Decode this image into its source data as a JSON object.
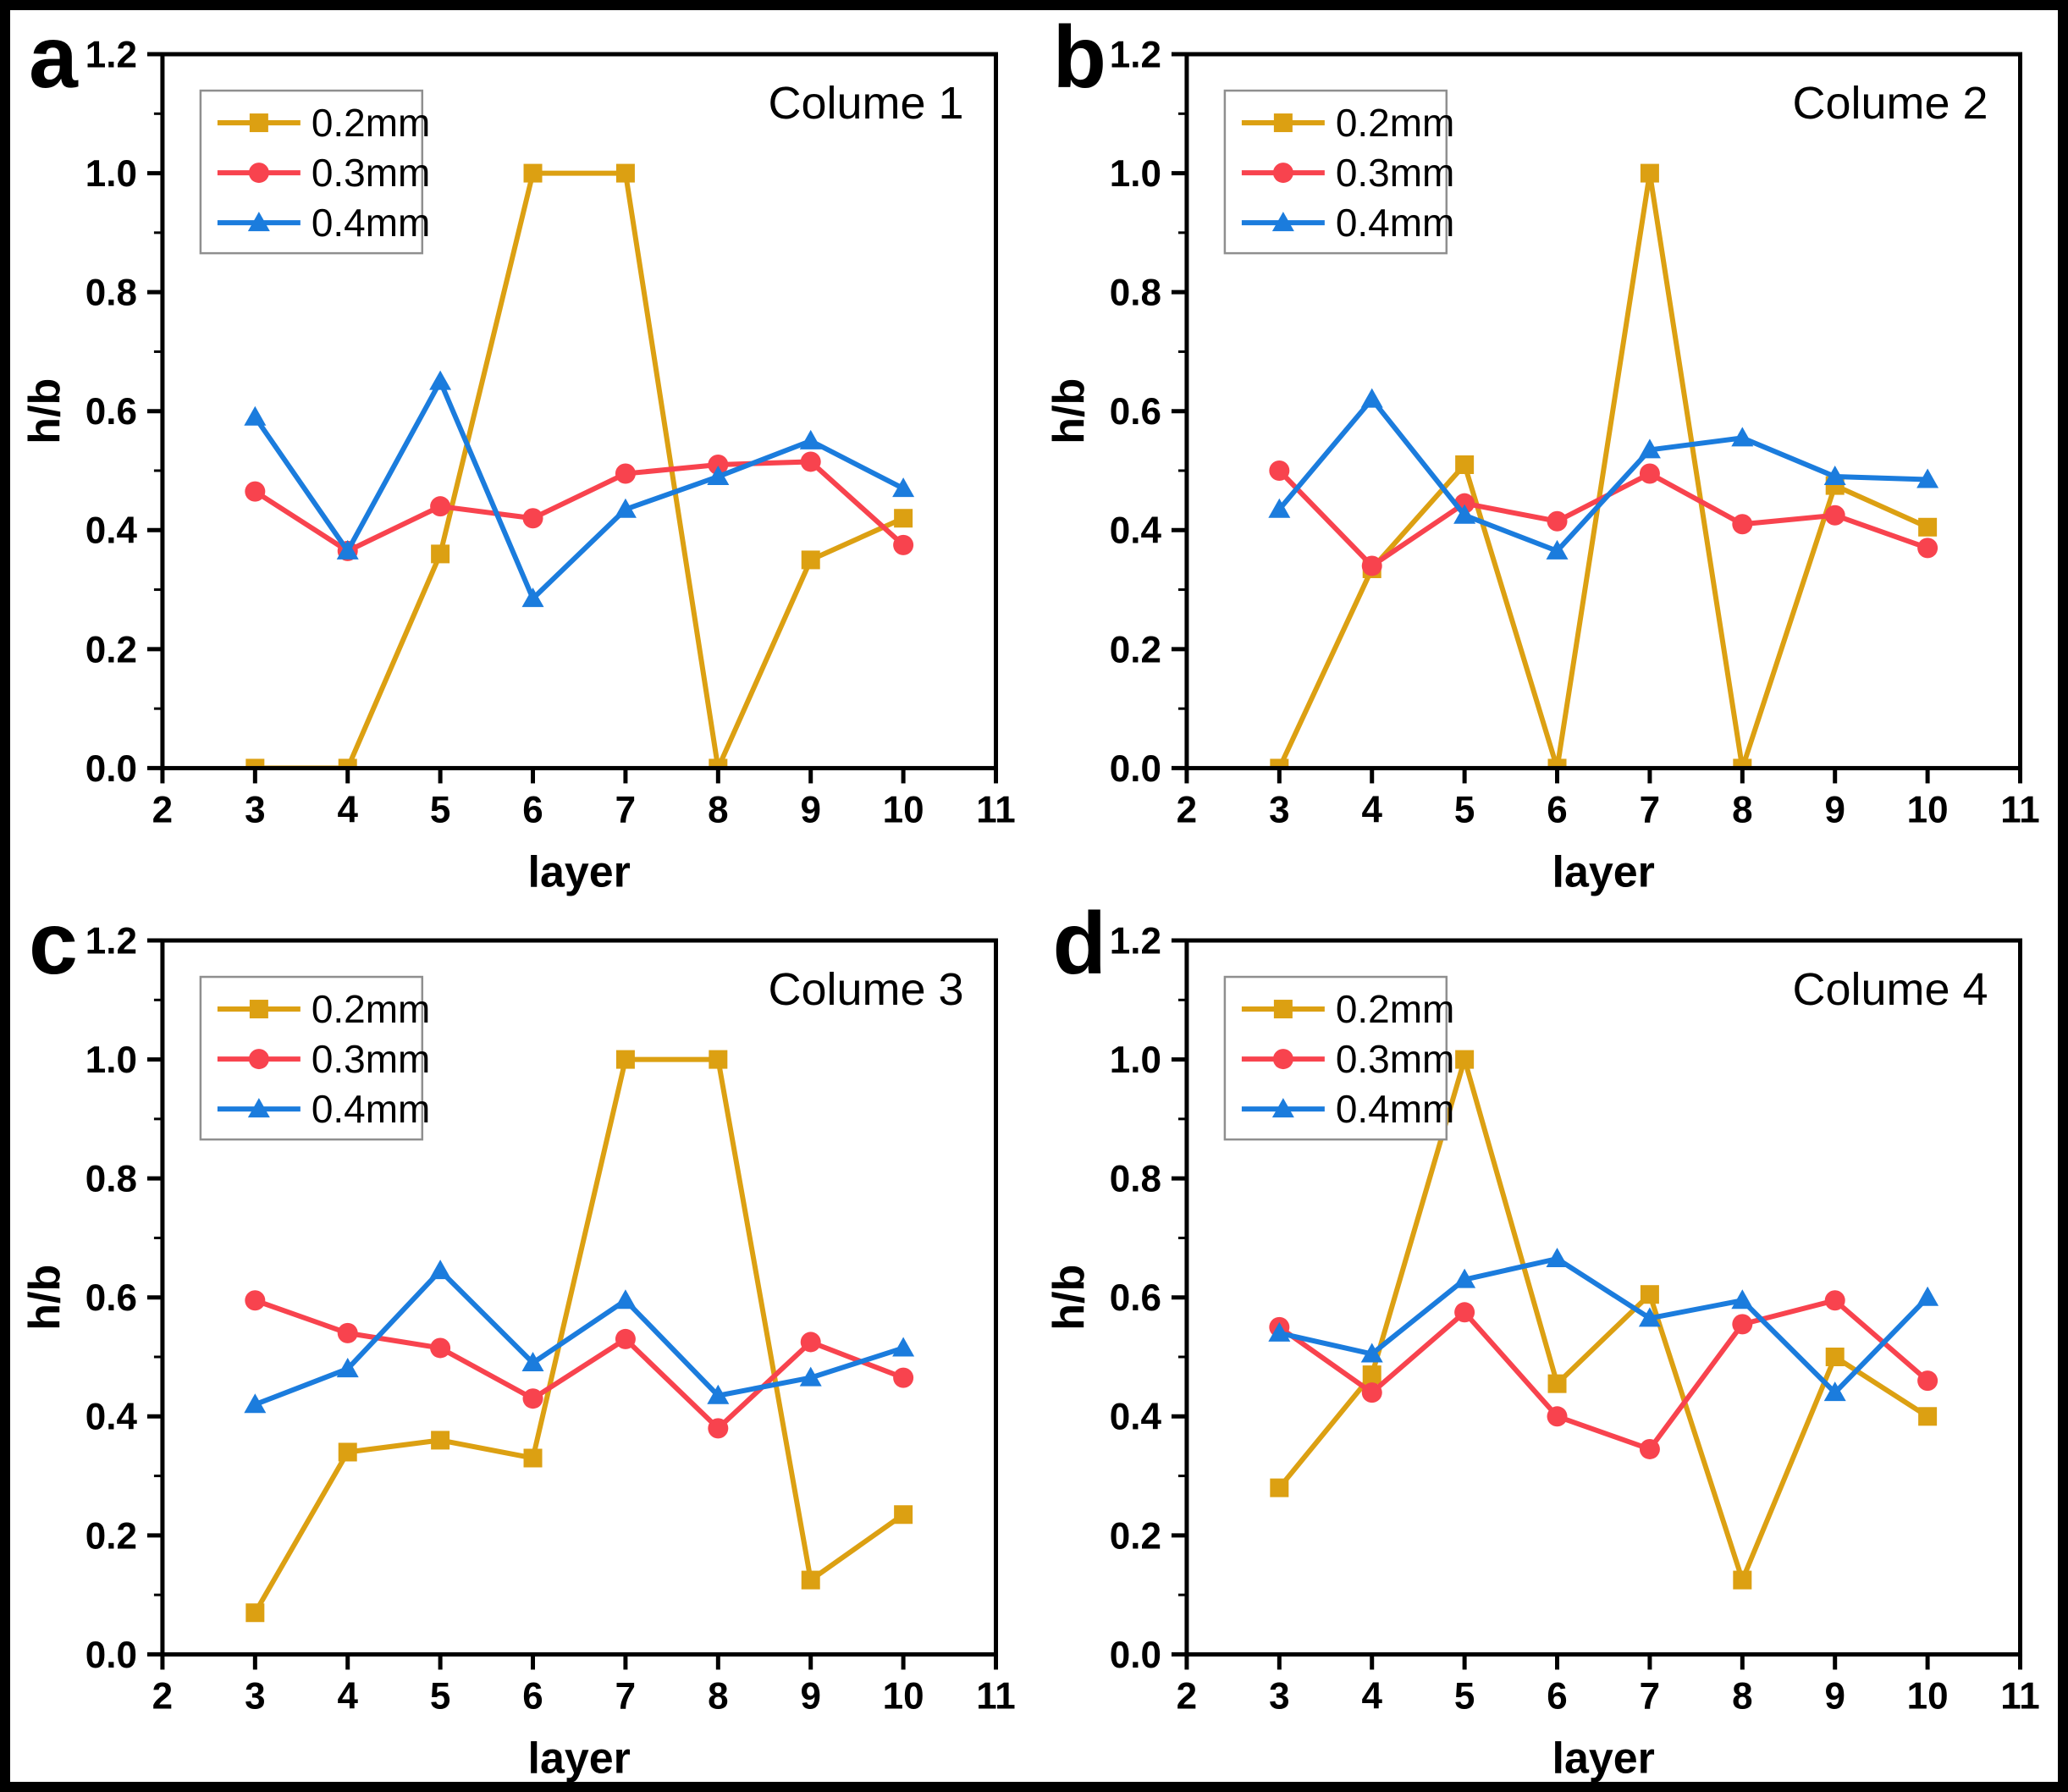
{
  "figure": {
    "background": "#ffffff",
    "border_color": "#000000"
  },
  "style": {
    "axis_color": "#000000",
    "legend_border_color": "#8f8f8f",
    "legend_background": "#ffffff",
    "series_colors": {
      "0.2mm": "#DCA012",
      "0.3mm": "#F8434E",
      "0.4mm": "#1B7CDD"
    },
    "marker_shapes": {
      "0.2mm": "square",
      "0.3mm": "circle",
      "0.4mm": "triangle"
    }
  },
  "chart_data": [
    {
      "type": "line",
      "panel_letter": "a",
      "title": "Colume 1",
      "xlabel": "layer",
      "ylabel": "h/b",
      "xlim": [
        2,
        11
      ],
      "ylim": [
        0.0,
        1.2
      ],
      "xticks": [
        2,
        3,
        4,
        5,
        6,
        7,
        8,
        9,
        10,
        11
      ],
      "yticks": [
        "0.0",
        "0.2",
        "0.4",
        "0.6",
        "0.8",
        "1.0",
        "1.2"
      ],
      "y_minor_step": 0.1,
      "grid": false,
      "legend_position": "top-left",
      "x": [
        3,
        4,
        5,
        6,
        7,
        8,
        9,
        10
      ],
      "series": [
        {
          "name": "0.2mm",
          "marker": "square",
          "color": "#DCA012",
          "values": [
            0.0,
            0.0,
            0.36,
            1.0,
            1.0,
            0.0,
            0.35,
            0.42
          ]
        },
        {
          "name": "0.3mm",
          "marker": "circle",
          "color": "#F8434E",
          "values": [
            0.465,
            0.365,
            0.44,
            0.42,
            0.495,
            0.51,
            0.515,
            0.375
          ]
        },
        {
          "name": "0.4mm",
          "marker": "triangle",
          "color": "#1B7CDD",
          "values": [
            0.59,
            0.365,
            0.65,
            0.285,
            0.435,
            0.49,
            0.55,
            0.47
          ]
        }
      ]
    },
    {
      "type": "line",
      "panel_letter": "b",
      "title": "Colume 2",
      "xlabel": "layer",
      "ylabel": "h/b",
      "xlim": [
        2,
        11
      ],
      "ylim": [
        0.0,
        1.2
      ],
      "xticks": [
        2,
        3,
        4,
        5,
        6,
        7,
        8,
        9,
        10,
        11
      ],
      "yticks": [
        "0.0",
        "0.2",
        "0.4",
        "0.6",
        "0.8",
        "1.0",
        "1.2"
      ],
      "y_minor_step": 0.1,
      "grid": false,
      "legend_position": "top-left",
      "x": [
        3,
        4,
        5,
        6,
        7,
        8,
        9,
        10
      ],
      "series": [
        {
          "name": "0.2mm",
          "marker": "square",
          "color": "#DCA012",
          "values": [
            0.0,
            0.335,
            0.51,
            0.0,
            1.0,
            0.0,
            0.475,
            0.405
          ]
        },
        {
          "name": "0.3mm",
          "marker": "circle",
          "color": "#F8434E",
          "values": [
            0.5,
            0.34,
            0.445,
            0.415,
            0.495,
            0.41,
            0.425,
            0.37
          ]
        },
        {
          "name": "0.4mm",
          "marker": "triangle",
          "color": "#1B7CDD",
          "values": [
            0.435,
            0.62,
            0.425,
            0.365,
            0.535,
            0.555,
            0.49,
            0.485
          ]
        }
      ]
    },
    {
      "type": "line",
      "panel_letter": "c",
      "title": "Colume 3",
      "xlabel": "layer",
      "ylabel": "h/b",
      "xlim": [
        2,
        11
      ],
      "ylim": [
        0.0,
        1.2
      ],
      "xticks": [
        2,
        3,
        4,
        5,
        6,
        7,
        8,
        9,
        10,
        11
      ],
      "yticks": [
        "0.0",
        "0.2",
        "0.4",
        "0.6",
        "0.8",
        "1.0",
        "1.2"
      ],
      "y_minor_step": 0.1,
      "grid": false,
      "legend_position": "top-left",
      "x": [
        3,
        4,
        5,
        6,
        7,
        8,
        9,
        10
      ],
      "series": [
        {
          "name": "0.2mm",
          "marker": "square",
          "color": "#DCA012",
          "values": [
            0.07,
            0.34,
            0.36,
            0.33,
            1.0,
            1.0,
            0.125,
            0.235
          ]
        },
        {
          "name": "0.3mm",
          "marker": "circle",
          "color": "#F8434E",
          "values": [
            0.595,
            0.54,
            0.515,
            0.43,
            0.53,
            0.38,
            0.525,
            0.465
          ]
        },
        {
          "name": "0.4mm",
          "marker": "triangle",
          "color": "#1B7CDD",
          "values": [
            0.42,
            0.48,
            0.645,
            0.49,
            0.595,
            0.435,
            0.465,
            0.515
          ]
        }
      ]
    },
    {
      "type": "line",
      "panel_letter": "d",
      "title": "Colume 4",
      "xlabel": "layer",
      "ylabel": "h/b",
      "xlim": [
        2,
        11
      ],
      "ylim": [
        0.0,
        1.2
      ],
      "xticks": [
        2,
        3,
        4,
        5,
        6,
        7,
        8,
        9,
        10,
        11
      ],
      "yticks": [
        "0.0",
        "0.2",
        "0.4",
        "0.6",
        "0.8",
        "1.0",
        "1.2"
      ],
      "y_minor_step": 0.1,
      "grid": false,
      "legend_position": "top-left",
      "x": [
        3,
        4,
        5,
        6,
        7,
        8,
        9,
        10
      ],
      "series": [
        {
          "name": "0.2mm",
          "marker": "square",
          "color": "#DCA012",
          "values": [
            0.28,
            0.47,
            1.0,
            0.455,
            0.605,
            0.125,
            0.5,
            0.4
          ]
        },
        {
          "name": "0.3mm",
          "marker": "circle",
          "color": "#F8434E",
          "values": [
            0.55,
            0.44,
            0.575,
            0.4,
            0.345,
            0.555,
            0.595,
            0.46
          ]
        },
        {
          "name": "0.4mm",
          "marker": "triangle",
          "color": "#1B7CDD",
          "values": [
            0.54,
            0.505,
            0.63,
            0.665,
            0.565,
            0.595,
            0.44,
            0.6
          ]
        }
      ]
    }
  ]
}
